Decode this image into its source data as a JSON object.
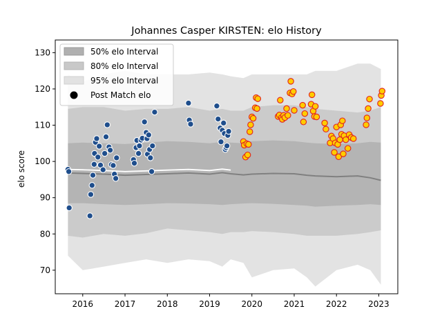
{
  "chart_data": {
    "type": "scatter",
    "title": "Johannes Casper KIRSTEN: elo History",
    "xlabel": "",
    "ylabel": "elo score",
    "xlim": [
      2015.35,
      2023.45
    ],
    "ylim": [
      63.5,
      133.5
    ],
    "xticks": [
      2016,
      2017,
      2018,
      2019,
      2020,
      2021,
      2022,
      2023
    ],
    "yticks": [
      70,
      80,
      90,
      100,
      110,
      120,
      130
    ],
    "legend": {
      "placement": "top-left",
      "entries": [
        {
          "label": "50% elo Interval",
          "color": "#b0b0b0"
        },
        {
          "label": "80% elo Interval",
          "color": "#c8c8c8"
        },
        {
          "label": "95% elo Interval",
          "color": "#e2e2e2"
        },
        {
          "label": "Post Match elo",
          "color": "#000000"
        }
      ]
    },
    "colors": {
      "band95": "#e3e3e3",
      "band80": "#cbcbcb",
      "band50": "#b4b4b4",
      "mean_line": "#808080",
      "mean_line_early": "#ffffff",
      "early_fill": "#1f4e8c",
      "early_edge": "#ffffff",
      "late_fill": "#ffcc00",
      "late_edge": "#e02020"
    },
    "bands": {
      "x": [
        2015.65,
        2016.0,
        2016.5,
        2017.0,
        2017.5,
        2018.0,
        2018.5,
        2019.0,
        2019.3,
        2019.5,
        2019.8,
        2020.0,
        2020.5,
        2021.0,
        2021.3,
        2021.5,
        2022.0,
        2022.5,
        2022.8,
        2023.05
      ],
      "mean": [
        96.8,
        96.7,
        96.5,
        96.2,
        96.4,
        96.6,
        96.8,
        96.5,
        96.9,
        96.6,
        96.3,
        96.5,
        96.7,
        96.6,
        96.2,
        96.0,
        95.8,
        96.0,
        95.5,
        94.8
      ],
      "p50_lo": [
        88.5,
        88.5,
        88.2,
        88.0,
        88.2,
        88.5,
        88.4,
        88.2,
        88.0,
        88.2,
        88.4,
        88.5,
        88.3,
        88.0,
        87.8,
        87.5,
        87.8,
        88.0,
        88.2,
        88.0
      ],
      "p50_hi": [
        105.0,
        105.2,
        105.0,
        104.8,
        105.2,
        105.6,
        105.4,
        105.0,
        105.4,
        105.2,
        105.0,
        105.6,
        105.8,
        105.6,
        105.2,
        105.0,
        104.8,
        105.0,
        105.4,
        105.2
      ],
      "p80_lo": [
        79.5,
        79.0,
        80.0,
        79.5,
        80.2,
        81.5,
        81.0,
        80.5,
        80.0,
        80.5,
        80.5,
        80.8,
        80.5,
        80.0,
        79.5,
        79.5,
        79.5,
        80.0,
        80.5,
        81.0
      ],
      "p80_hi": [
        114.5,
        115.0,
        115.0,
        114.0,
        114.5,
        114.5,
        115.0,
        114.0,
        114.5,
        114.0,
        114.0,
        115.0,
        115.5,
        115.5,
        115.0,
        114.5,
        114.0,
        113.5,
        114.0,
        115.0
      ],
      "p95_lo": [
        74.0,
        70.0,
        71.0,
        72.0,
        73.0,
        72.0,
        73.0,
        72.5,
        71.0,
        73.0,
        72.0,
        68.0,
        70.0,
        70.5,
        68.0,
        65.5,
        70.0,
        71.5,
        70.0,
        66.0
      ],
      "p95_hi": [
        124.0,
        122.0,
        124.0,
        125.0,
        124.0,
        124.0,
        124.0,
        124.5,
        124.0,
        123.5,
        123.0,
        124.0,
        124.0,
        124.0,
        124.0,
        125.0,
        125.0,
        127.0,
        127.0,
        125.5
      ]
    },
    "series": [
      {
        "name": "Post Match elo (2015-2019)",
        "points": [
          [
            2015.65,
            97.8
          ],
          [
            2015.67,
            97.2
          ],
          [
            2015.68,
            87.2
          ],
          [
            2016.17,
            85.0
          ],
          [
            2016.19,
            90.9
          ],
          [
            2016.22,
            93.4
          ],
          [
            2016.24,
            96.2
          ],
          [
            2016.27,
            99.2
          ],
          [
            2016.28,
            102.2
          ],
          [
            2016.3,
            105.3
          ],
          [
            2016.33,
            106.3
          ],
          [
            2016.36,
            101.2
          ],
          [
            2016.39,
            104.2
          ],
          [
            2016.42,
            99.0
          ],
          [
            2016.48,
            97.7
          ],
          [
            2016.52,
            102.2
          ],
          [
            2016.55,
            106.8
          ],
          [
            2016.58,
            110.1
          ],
          [
            2016.62,
            104.0
          ],
          [
            2016.65,
            103.1
          ],
          [
            2016.68,
            99.1
          ],
          [
            2016.72,
            98.9
          ],
          [
            2016.75,
            96.5
          ],
          [
            2016.78,
            95.3
          ],
          [
            2016.8,
            101.0
          ],
          [
            2017.2,
            100.5
          ],
          [
            2017.22,
            99.5
          ],
          [
            2017.26,
            103.8
          ],
          [
            2017.28,
            105.8
          ],
          [
            2017.32,
            102.2
          ],
          [
            2017.34,
            104.3
          ],
          [
            2017.38,
            105.9
          ],
          [
            2017.41,
            106.4
          ],
          [
            2017.46,
            110.9
          ],
          [
            2017.5,
            108.0
          ],
          [
            2017.52,
            106.3
          ],
          [
            2017.53,
            102.0
          ],
          [
            2017.56,
            107.3
          ],
          [
            2017.58,
            103.3
          ],
          [
            2017.6,
            101.0
          ],
          [
            2017.63,
            97.2
          ],
          [
            2017.65,
            104.3
          ],
          [
            2017.7,
            113.6
          ],
          [
            2018.5,
            116.1
          ],
          [
            2018.52,
            111.4
          ],
          [
            2018.55,
            110.3
          ],
          [
            2019.17,
            115.3
          ],
          [
            2019.2,
            111.7
          ],
          [
            2019.25,
            109.2
          ],
          [
            2019.27,
            105.4
          ],
          [
            2019.3,
            108.6
          ],
          [
            2019.33,
            110.6
          ],
          [
            2019.35,
            107.7
          ],
          [
            2019.37,
            103.3
          ],
          [
            2019.39,
            103.8
          ],
          [
            2019.41,
            104.3
          ],
          [
            2019.43,
            107.2
          ],
          [
            2019.45,
            108.3
          ]
        ]
      },
      {
        "name": "Post Match elo (2019-2023)",
        "points": [
          [
            2019.8,
            105.5
          ],
          [
            2019.82,
            104.5
          ],
          [
            2019.85,
            101.2
          ],
          [
            2019.88,
            104.9
          ],
          [
            2019.9,
            101.8
          ],
          [
            2019.92,
            104.7
          ],
          [
            2019.95,
            108.2
          ],
          [
            2019.97,
            110.1
          ],
          [
            2020.0,
            112.3
          ],
          [
            2020.03,
            111.9
          ],
          [
            2020.08,
            114.8
          ],
          [
            2020.1,
            117.6
          ],
          [
            2020.12,
            114.6
          ],
          [
            2020.14,
            117.3
          ],
          [
            2020.62,
            112.4
          ],
          [
            2020.65,
            112.8
          ],
          [
            2020.67,
            116.9
          ],
          [
            2020.7,
            112.1
          ],
          [
            2020.72,
            111.6
          ],
          [
            2020.75,
            112.7
          ],
          [
            2020.78,
            112.1
          ],
          [
            2020.82,
            114.6
          ],
          [
            2020.85,
            112.7
          ],
          [
            2020.9,
            118.9
          ],
          [
            2020.92,
            122.1
          ],
          [
            2020.95,
            118.6
          ],
          [
            2020.98,
            119.3
          ],
          [
            2021.0,
            114.1
          ],
          [
            2021.2,
            115.5
          ],
          [
            2021.22,
            110.9
          ],
          [
            2021.25,
            113.2
          ],
          [
            2021.4,
            115.8
          ],
          [
            2021.42,
            118.4
          ],
          [
            2021.45,
            113.9
          ],
          [
            2021.48,
            112.4
          ],
          [
            2021.5,
            115.2
          ],
          [
            2021.53,
            112.3
          ],
          [
            2021.72,
            110.6
          ],
          [
            2021.75,
            108.9
          ],
          [
            2021.85,
            105.1
          ],
          [
            2021.88,
            107.0
          ],
          [
            2021.92,
            106.3
          ],
          [
            2021.95,
            102.5
          ],
          [
            2021.97,
            105.1
          ],
          [
            2022.0,
            109.5
          ],
          [
            2022.03,
            104.7
          ],
          [
            2022.05,
            101.3
          ],
          [
            2022.08,
            106.0
          ],
          [
            2022.1,
            110.1
          ],
          [
            2022.12,
            107.5
          ],
          [
            2022.14,
            111.2
          ],
          [
            2022.16,
            102.1
          ],
          [
            2022.18,
            107.1
          ],
          [
            2022.22,
            106.0
          ],
          [
            2022.27,
            103.6
          ],
          [
            2022.3,
            107.4
          ],
          [
            2022.35,
            106.6
          ],
          [
            2022.4,
            106.3
          ],
          [
            2022.7,
            110.1
          ],
          [
            2022.72,
            112.0
          ],
          [
            2022.75,
            114.6
          ],
          [
            2022.78,
            117.2
          ],
          [
            2023.04,
            116.0
          ],
          [
            2023.06,
            118.2
          ],
          [
            2023.08,
            119.4
          ]
        ]
      }
    ]
  }
}
